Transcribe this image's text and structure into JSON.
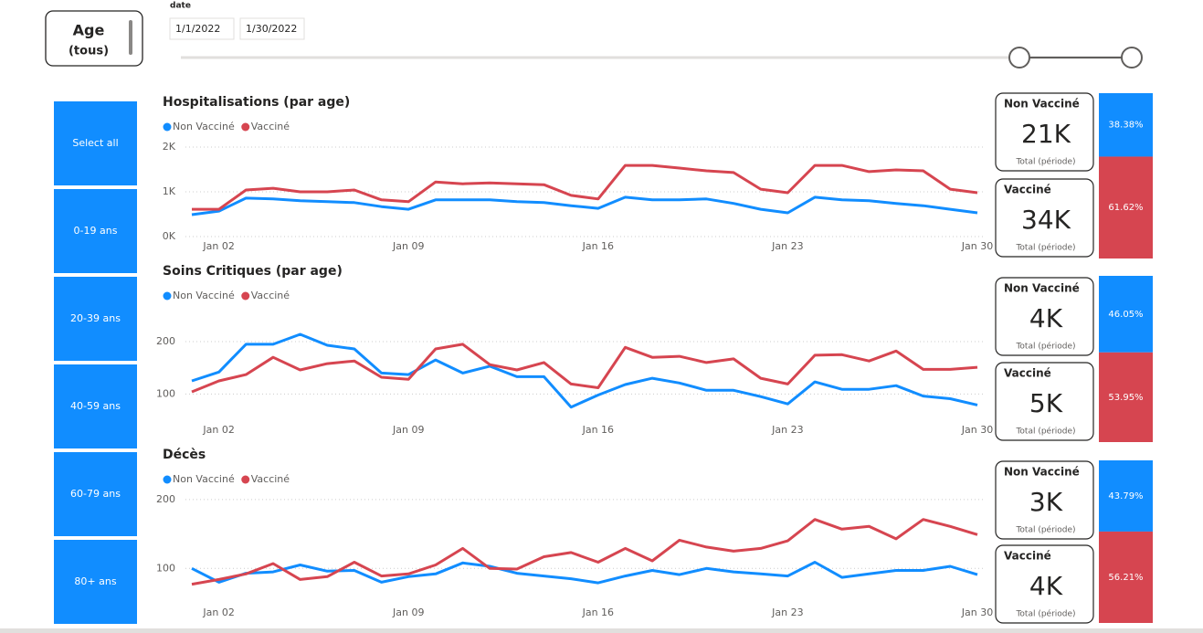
{
  "age_slicer": {
    "title": "Age",
    "selection": "(tous)"
  },
  "date_slicer": {
    "title": "date",
    "start": "1/1/2022",
    "end": "1/30/2022"
  },
  "age_buttons": [
    "Select all",
    "0-19 ans",
    "20-39 ans",
    "40-59 ans",
    "60-79 ans",
    "80+ ans"
  ],
  "chart_data": [
    {
      "type": "line",
      "title": "Hospitalisations (par age)",
      "x": [
        1,
        2,
        3,
        4,
        5,
        6,
        7,
        8,
        9,
        10,
        11,
        12,
        13,
        14,
        15,
        16,
        17,
        18,
        19,
        20,
        21,
        22,
        23,
        24,
        25,
        26,
        27,
        28,
        29,
        30
      ],
      "xlim": [
        1,
        30
      ],
      "xticks": [
        {
          "value": 2,
          "label": "Jan 02"
        },
        {
          "value": 9,
          "label": "Jan 09"
        },
        {
          "value": 16,
          "label": "Jan 16"
        },
        {
          "value": 23,
          "label": "Jan 23"
        },
        {
          "value": 30,
          "label": "Jan 30"
        }
      ],
      "ylim": [
        0,
        2000
      ],
      "yticks": [
        {
          "value": 0,
          "label": "0K"
        },
        {
          "value": 1000,
          "label": "1K"
        },
        {
          "value": 2000,
          "label": "2K"
        }
      ],
      "grid": true,
      "series": [
        {
          "name": "Non Vacciné",
          "color": "#118dff",
          "values": [
            490,
            570,
            860,
            840,
            800,
            780,
            760,
            670,
            610,
            820,
            820,
            820,
            780,
            760,
            690,
            630,
            880,
            820,
            820,
            840,
            740,
            610,
            530,
            880,
            820,
            800,
            740,
            690,
            610,
            530
          ]
        },
        {
          "name": "Vacciné",
          "color": "#d64550",
          "values": [
            610,
            610,
            1040,
            1080,
            1000,
            1000,
            1040,
            820,
            780,
            1220,
            1180,
            1200,
            1180,
            1160,
            920,
            840,
            1590,
            1590,
            1530,
            1470,
            1430,
            1060,
            980,
            1590,
            1590,
            1450,
            1490,
            1470,
            1060,
            980
          ]
        }
      ],
      "cards": [
        {
          "title": "Non Vacciné",
          "value": "21K",
          "caption": "Total (période)"
        },
        {
          "title": "Vacciné",
          "value": "34K",
          "caption": "Total (période)"
        }
      ],
      "share": {
        "values": [
          38.38,
          61.62
        ],
        "value_labels": [
          "38.38%",
          "61.62%"
        ]
      }
    },
    {
      "type": "line",
      "title": "Soins Critiques (par age)",
      "x": [
        1,
        2,
        3,
        4,
        5,
        6,
        7,
        8,
        9,
        10,
        11,
        12,
        13,
        14,
        15,
        16,
        17,
        18,
        19,
        20,
        21,
        22,
        23,
        24,
        25,
        26,
        27,
        28,
        29,
        30
      ],
      "xlim": [
        1,
        30
      ],
      "xticks": [
        {
          "value": 2,
          "label": "Jan 02"
        },
        {
          "value": 9,
          "label": "Jan 09"
        },
        {
          "value": 16,
          "label": "Jan 16"
        },
        {
          "value": 23,
          "label": "Jan 23"
        },
        {
          "value": 30,
          "label": "Jan 30"
        }
      ],
      "ylim": [
        50,
        275
      ],
      "yticks": [
        100,
        200
      ],
      "grid": true,
      "series": [
        {
          "name": "Non Vacciné",
          "color": "#118dff",
          "values": [
            125,
            142,
            195,
            195,
            214,
            193,
            186,
            140,
            137,
            165,
            140,
            153,
            133,
            133,
            75,
            98,
            118,
            130,
            121,
            107,
            107,
            95,
            81,
            123,
            109,
            109,
            116,
            96,
            91,
            79
          ]
        },
        {
          "name": "Vacciné",
          "color": "#d64550",
          "values": [
            104,
            125,
            137,
            170,
            146,
            158,
            163,
            132,
            128,
            186,
            195,
            156,
            146,
            160,
            119,
            112,
            189,
            170,
            172,
            160,
            167,
            130,
            119,
            174,
            175,
            163,
            182,
            147,
            147,
            151
          ]
        }
      ],
      "cards": [
        {
          "title": "Non Vacciné",
          "value": "4K",
          "caption": "Total (période)"
        },
        {
          "title": "Vacciné",
          "value": "5K",
          "caption": "Total (période)"
        }
      ],
      "share": {
        "values": [
          46.05,
          53.95
        ],
        "value_labels": [
          "46.05%",
          "53.95%"
        ]
      }
    },
    {
      "type": "line",
      "title": "Décès",
      "x": [
        1,
        2,
        3,
        4,
        5,
        6,
        7,
        8,
        9,
        10,
        11,
        12,
        13,
        14,
        15,
        16,
        17,
        18,
        19,
        20,
        21,
        22,
        23,
        24,
        25,
        26,
        27,
        28,
        29,
        30
      ],
      "xlim": [
        1,
        30
      ],
      "xticks": [
        {
          "value": 2,
          "label": "Jan 02"
        },
        {
          "value": 9,
          "label": "Jan 09"
        },
        {
          "value": 16,
          "label": "Jan 16"
        },
        {
          "value": 23,
          "label": "Jan 23"
        },
        {
          "value": 30,
          "label": "Jan 30"
        }
      ],
      "ylim": [
        50,
        225
      ],
      "yticks": [
        100,
        200
      ],
      "grid": true,
      "series": [
        {
          "name": "Non Vacciné",
          "color": "#118dff",
          "values": [
            100,
            80,
            93,
            95,
            105,
            96,
            97,
            80,
            88,
            92,
            108,
            103,
            93,
            89,
            85,
            79,
            89,
            97,
            91,
            100,
            95,
            92,
            89,
            109,
            87,
            92,
            97,
            97,
            103,
            91
          ]
        },
        {
          "name": "Vacciné",
          "color": "#d64550",
          "values": [
            77,
            84,
            92,
            107,
            84,
            88,
            109,
            89,
            92,
            105,
            129,
            100,
            99,
            117,
            123,
            109,
            129,
            111,
            141,
            131,
            125,
            129,
            140,
            171,
            157,
            161,
            143,
            171,
            161,
            149
          ]
        }
      ],
      "cards": [
        {
          "title": "Non Vacciné",
          "value": "3K",
          "caption": "Total (période)"
        },
        {
          "title": "Vacciné",
          "value": "4K",
          "caption": "Total (période)"
        }
      ],
      "share": {
        "values": [
          43.79,
          56.21
        ],
        "value_labels": [
          "43.79%",
          "56.21%"
        ]
      }
    }
  ]
}
